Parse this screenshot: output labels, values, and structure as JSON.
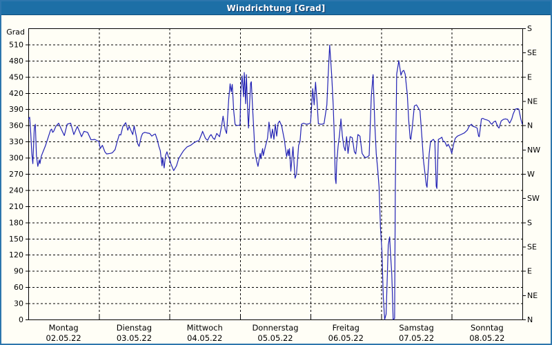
{
  "window": {
    "title": "Windrichtung [Grad]"
  },
  "colors": {
    "titlebar_bg": "#1d6fa6",
    "window_border": "#2d76ad",
    "background": "#fffef6",
    "line": "#2121b4",
    "grid": "#000000",
    "text": "#000000"
  },
  "chart_data": {
    "type": "line",
    "title": "Windrichtung [Grad]",
    "ylabel_left": "Grad",
    "ylim": [
      0,
      540
    ],
    "grid": true,
    "y_left": {
      "min": 0,
      "max": 540,
      "tick_step": 30,
      "labeled_max": 510
    },
    "y_right_compass": [
      {
        "deg": 0,
        "label": "N"
      },
      {
        "deg": 45,
        "label": "NE"
      },
      {
        "deg": 90,
        "label": "E"
      },
      {
        "deg": 135,
        "label": "SE"
      },
      {
        "deg": 180,
        "label": "S"
      },
      {
        "deg": 225,
        "label": "SW"
      },
      {
        "deg": 270,
        "label": "W"
      },
      {
        "deg": 315,
        "label": "NW"
      },
      {
        "deg": 360,
        "label": "N"
      },
      {
        "deg": 405,
        "label": "NE"
      },
      {
        "deg": 450,
        "label": "E"
      },
      {
        "deg": 495,
        "label": "SE"
      },
      {
        "deg": 540,
        "label": "S"
      }
    ],
    "x_days": [
      {
        "name": "Montag",
        "date": "02.05.22"
      },
      {
        "name": "Dienstag",
        "date": "03.05.22"
      },
      {
        "name": "Mittwoch",
        "date": "04.05.22"
      },
      {
        "name": "Donnerstag",
        "date": "05.05.22"
      },
      {
        "name": "Freitag",
        "date": "06.05.22"
      },
      {
        "name": "Samstag",
        "date": "07.05.22"
      },
      {
        "name": "Sonntag",
        "date": "08.05.22"
      }
    ],
    "series": [
      {
        "name": "Windrichtung",
        "unit": "Grad",
        "points": [
          [
            0,
            371
          ],
          [
            0.02,
            375
          ],
          [
            0.035,
            345
          ],
          [
            0.05,
            308
          ],
          [
            0.065,
            289
          ],
          [
            0.085,
            355
          ],
          [
            0.1,
            362
          ],
          [
            0.115,
            304
          ],
          [
            0.135,
            284
          ],
          [
            0.155,
            296
          ],
          [
            0.165,
            289
          ],
          [
            0.185,
            303
          ],
          [
            0.215,
            313
          ],
          [
            0.245,
            323
          ],
          [
            0.285,
            339
          ],
          [
            0.315,
            351
          ],
          [
            0.33,
            353
          ],
          [
            0.345,
            347
          ],
          [
            0.36,
            349
          ],
          [
            0.39,
            358
          ],
          [
            0.43,
            364
          ],
          [
            0.47,
            352
          ],
          [
            0.51,
            341
          ],
          [
            0.55,
            362
          ],
          [
            0.6,
            364
          ],
          [
            0.645,
            343
          ],
          [
            0.695,
            358
          ],
          [
            0.755,
            339
          ],
          [
            0.79,
            349
          ],
          [
            0.84,
            347
          ],
          [
            0.89,
            333
          ],
          [
            0.94,
            334
          ],
          [
            1,
            330
          ],
          [
            1.02,
            317
          ],
          [
            1.05,
            323
          ],
          [
            1.085,
            311
          ],
          [
            1.11,
            307
          ],
          [
            1.16,
            308
          ],
          [
            1.19,
            309
          ],
          [
            1.23,
            315
          ],
          [
            1.26,
            330
          ],
          [
            1.29,
            343
          ],
          [
            1.31,
            342
          ],
          [
            1.34,
            358
          ],
          [
            1.38,
            365
          ],
          [
            1.41,
            351
          ],
          [
            1.43,
            358
          ],
          [
            1.46,
            349
          ],
          [
            1.48,
            343
          ],
          [
            1.5,
            359
          ],
          [
            1.53,
            340
          ],
          [
            1.55,
            326
          ],
          [
            1.57,
            321
          ],
          [
            1.6,
            339
          ],
          [
            1.62,
            345
          ],
          [
            1.65,
            347
          ],
          [
            1.68,
            346
          ],
          [
            1.72,
            345
          ],
          [
            1.75,
            340
          ],
          [
            1.78,
            343
          ],
          [
            1.8,
            344
          ],
          [
            1.83,
            332
          ],
          [
            1.85,
            321
          ],
          [
            1.87,
            313
          ],
          [
            1.895,
            285
          ],
          [
            1.905,
            300
          ],
          [
            1.925,
            281
          ],
          [
            1.945,
            304
          ],
          [
            1.965,
            311
          ],
          [
            1.985,
            302
          ],
          [
            2,
            298
          ],
          [
            2.02,
            289
          ],
          [
            2.06,
            276
          ],
          [
            2.1,
            285
          ],
          [
            2.13,
            298
          ],
          [
            2.17,
            307
          ],
          [
            2.2,
            313
          ],
          [
            2.25,
            320
          ],
          [
            2.3,
            323
          ],
          [
            2.35,
            328
          ],
          [
            2.38,
            330
          ],
          [
            2.42,
            332
          ],
          [
            2.46,
            345
          ],
          [
            2.47,
            349
          ],
          [
            2.51,
            336
          ],
          [
            2.54,
            332
          ],
          [
            2.57,
            340
          ],
          [
            2.59,
            343
          ],
          [
            2.62,
            336
          ],
          [
            2.64,
            334
          ],
          [
            2.67,
            345
          ],
          [
            2.71,
            339
          ],
          [
            2.74,
            360
          ],
          [
            2.76,
            377
          ],
          [
            2.79,
            352
          ],
          [
            2.81,
            345
          ],
          [
            2.84,
            409
          ],
          [
            2.86,
            437
          ],
          [
            2.875,
            422
          ],
          [
            2.89,
            436
          ],
          [
            2.91,
            387
          ],
          [
            2.93,
            362
          ],
          [
            2.95,
            360
          ],
          [
            2.98,
            360
          ],
          [
            3,
            361
          ],
          [
            3.01,
            422
          ],
          [
            3.03,
            452
          ],
          [
            3.05,
            413
          ],
          [
            3.06,
            458
          ],
          [
            3.08,
            400
          ],
          [
            3.09,
            454
          ],
          [
            3.11,
            383
          ],
          [
            3.12,
            355
          ],
          [
            3.15,
            438
          ],
          [
            3.16,
            441
          ],
          [
            3.18,
            387
          ],
          [
            3.2,
            340
          ],
          [
            3.21,
            311
          ],
          [
            3.235,
            294
          ],
          [
            3.255,
            284
          ],
          [
            3.285,
            308
          ],
          [
            3.295,
            298
          ],
          [
            3.32,
            317
          ],
          [
            3.33,
            304
          ],
          [
            3.36,
            321
          ],
          [
            3.39,
            336
          ],
          [
            3.41,
            366
          ],
          [
            3.43,
            345
          ],
          [
            3.44,
            336
          ],
          [
            3.46,
            353
          ],
          [
            3.48,
            334
          ],
          [
            3.5,
            362
          ],
          [
            3.52,
            340
          ],
          [
            3.54,
            364
          ],
          [
            3.56,
            368
          ],
          [
            3.59,
            359
          ],
          [
            3.61,
            345
          ],
          [
            3.63,
            332
          ],
          [
            3.64,
            321
          ],
          [
            3.66,
            302
          ],
          [
            3.68,
            315
          ],
          [
            3.69,
            304
          ],
          [
            3.7,
            317
          ],
          [
            3.72,
            275
          ],
          [
            3.75,
            320
          ],
          [
            3.78,
            262
          ],
          [
            3.8,
            270
          ],
          [
            3.83,
            323
          ],
          [
            3.85,
            330
          ],
          [
            3.87,
            362
          ],
          [
            3.9,
            364
          ],
          [
            3.94,
            362
          ],
          [
            3.98,
            363
          ],
          [
            4,
            365
          ],
          [
            4.01,
            387
          ],
          [
            4.03,
            428
          ],
          [
            4.05,
            398
          ],
          [
            4.07,
            440
          ],
          [
            4.09,
            408
          ],
          [
            4.11,
            363
          ],
          [
            4.15,
            362
          ],
          [
            4.19,
            363
          ],
          [
            4.23,
            398
          ],
          [
            4.25,
            455
          ],
          [
            4.27,
            509
          ],
          [
            4.285,
            480
          ],
          [
            4.3,
            451
          ],
          [
            4.32,
            398
          ],
          [
            4.335,
            343
          ],
          [
            4.35,
            262
          ],
          [
            4.36,
            252
          ],
          [
            4.37,
            291
          ],
          [
            4.39,
            321
          ],
          [
            4.41,
            343
          ],
          [
            4.43,
            372
          ],
          [
            4.45,
            340
          ],
          [
            4.47,
            321
          ],
          [
            4.49,
            313
          ],
          [
            4.51,
            339
          ],
          [
            4.53,
            308
          ],
          [
            4.56,
            339
          ],
          [
            4.59,
            337
          ],
          [
            4.62,
            311
          ],
          [
            4.64,
            307
          ],
          [
            4.67,
            343
          ],
          [
            4.7,
            340
          ],
          [
            4.73,
            308
          ],
          [
            4.76,
            302
          ],
          [
            4.78,
            300
          ],
          [
            4.81,
            302
          ],
          [
            4.83,
            304
          ],
          [
            4.86,
            413
          ],
          [
            4.885,
            454
          ],
          [
            4.91,
            362
          ],
          [
            4.93,
            307
          ],
          [
            4.95,
            280
          ],
          [
            4.97,
            245
          ],
          [
            4.99,
            170
          ],
          [
            5.01,
            128
          ],
          [
            5.02,
            84
          ],
          [
            5.03,
            42
          ],
          [
            5.05,
            0
          ],
          [
            5.07,
            10
          ],
          [
            5.1,
            138
          ],
          [
            5.12,
            153
          ],
          [
            5.13,
            128
          ],
          [
            5.15,
            84
          ],
          [
            5.17,
            0
          ],
          [
            5.19,
            2
          ],
          [
            5.2,
            240
          ],
          [
            5.22,
            455
          ],
          [
            5.25,
            480
          ],
          [
            5.28,
            453
          ],
          [
            5.3,
            460
          ],
          [
            5.32,
            462
          ],
          [
            5.34,
            455
          ],
          [
            5.37,
            417
          ],
          [
            5.39,
            370
          ],
          [
            5.41,
            336
          ],
          [
            5.42,
            334
          ],
          [
            5.44,
            355
          ],
          [
            5.47,
            396
          ],
          [
            5.5,
            398
          ],
          [
            5.55,
            387
          ],
          [
            5.58,
            332
          ],
          [
            5.6,
            294
          ],
          [
            5.64,
            249
          ],
          [
            5.65,
            245
          ],
          [
            5.68,
            307
          ],
          [
            5.7,
            330
          ],
          [
            5.72,
            332
          ],
          [
            5.74,
            334
          ],
          [
            5.76,
            330
          ],
          [
            5.78,
            247
          ],
          [
            5.79,
            243
          ],
          [
            5.81,
            334
          ],
          [
            5.84,
            336
          ],
          [
            5.86,
            338
          ],
          [
            5.88,
            330
          ],
          [
            5.9,
            330
          ],
          [
            5.93,
            321
          ],
          [
            5.95,
            325
          ],
          [
            5.98,
            317
          ],
          [
            6,
            308
          ],
          [
            6.03,
            327
          ],
          [
            6.05,
            336
          ],
          [
            6.08,
            340
          ],
          [
            6.13,
            343
          ],
          [
            6.18,
            346
          ],
          [
            6.22,
            351
          ],
          [
            6.25,
            359
          ],
          [
            6.28,
            362
          ],
          [
            6.3,
            358
          ],
          [
            6.33,
            357
          ],
          [
            6.36,
            355
          ],
          [
            6.38,
            340
          ],
          [
            6.39,
            339
          ],
          [
            6.42,
            372
          ],
          [
            6.44,
            373
          ],
          [
            6.47,
            371
          ],
          [
            6.5,
            370
          ],
          [
            6.53,
            368
          ],
          [
            6.55,
            364
          ],
          [
            6.57,
            362
          ],
          [
            6.59,
            366
          ],
          [
            6.62,
            368
          ],
          [
            6.65,
            358
          ],
          [
            6.67,
            355
          ],
          [
            6.7,
            368
          ],
          [
            6.73,
            371
          ],
          [
            6.76,
            372
          ],
          [
            6.79,
            371
          ],
          [
            6.82,
            364
          ],
          [
            6.85,
            372
          ],
          [
            6.87,
            381
          ],
          [
            6.9,
            390
          ],
          [
            6.93,
            391
          ],
          [
            6.95,
            390
          ],
          [
            6.98,
            371
          ],
          [
            7,
            362
          ]
        ]
      }
    ]
  }
}
